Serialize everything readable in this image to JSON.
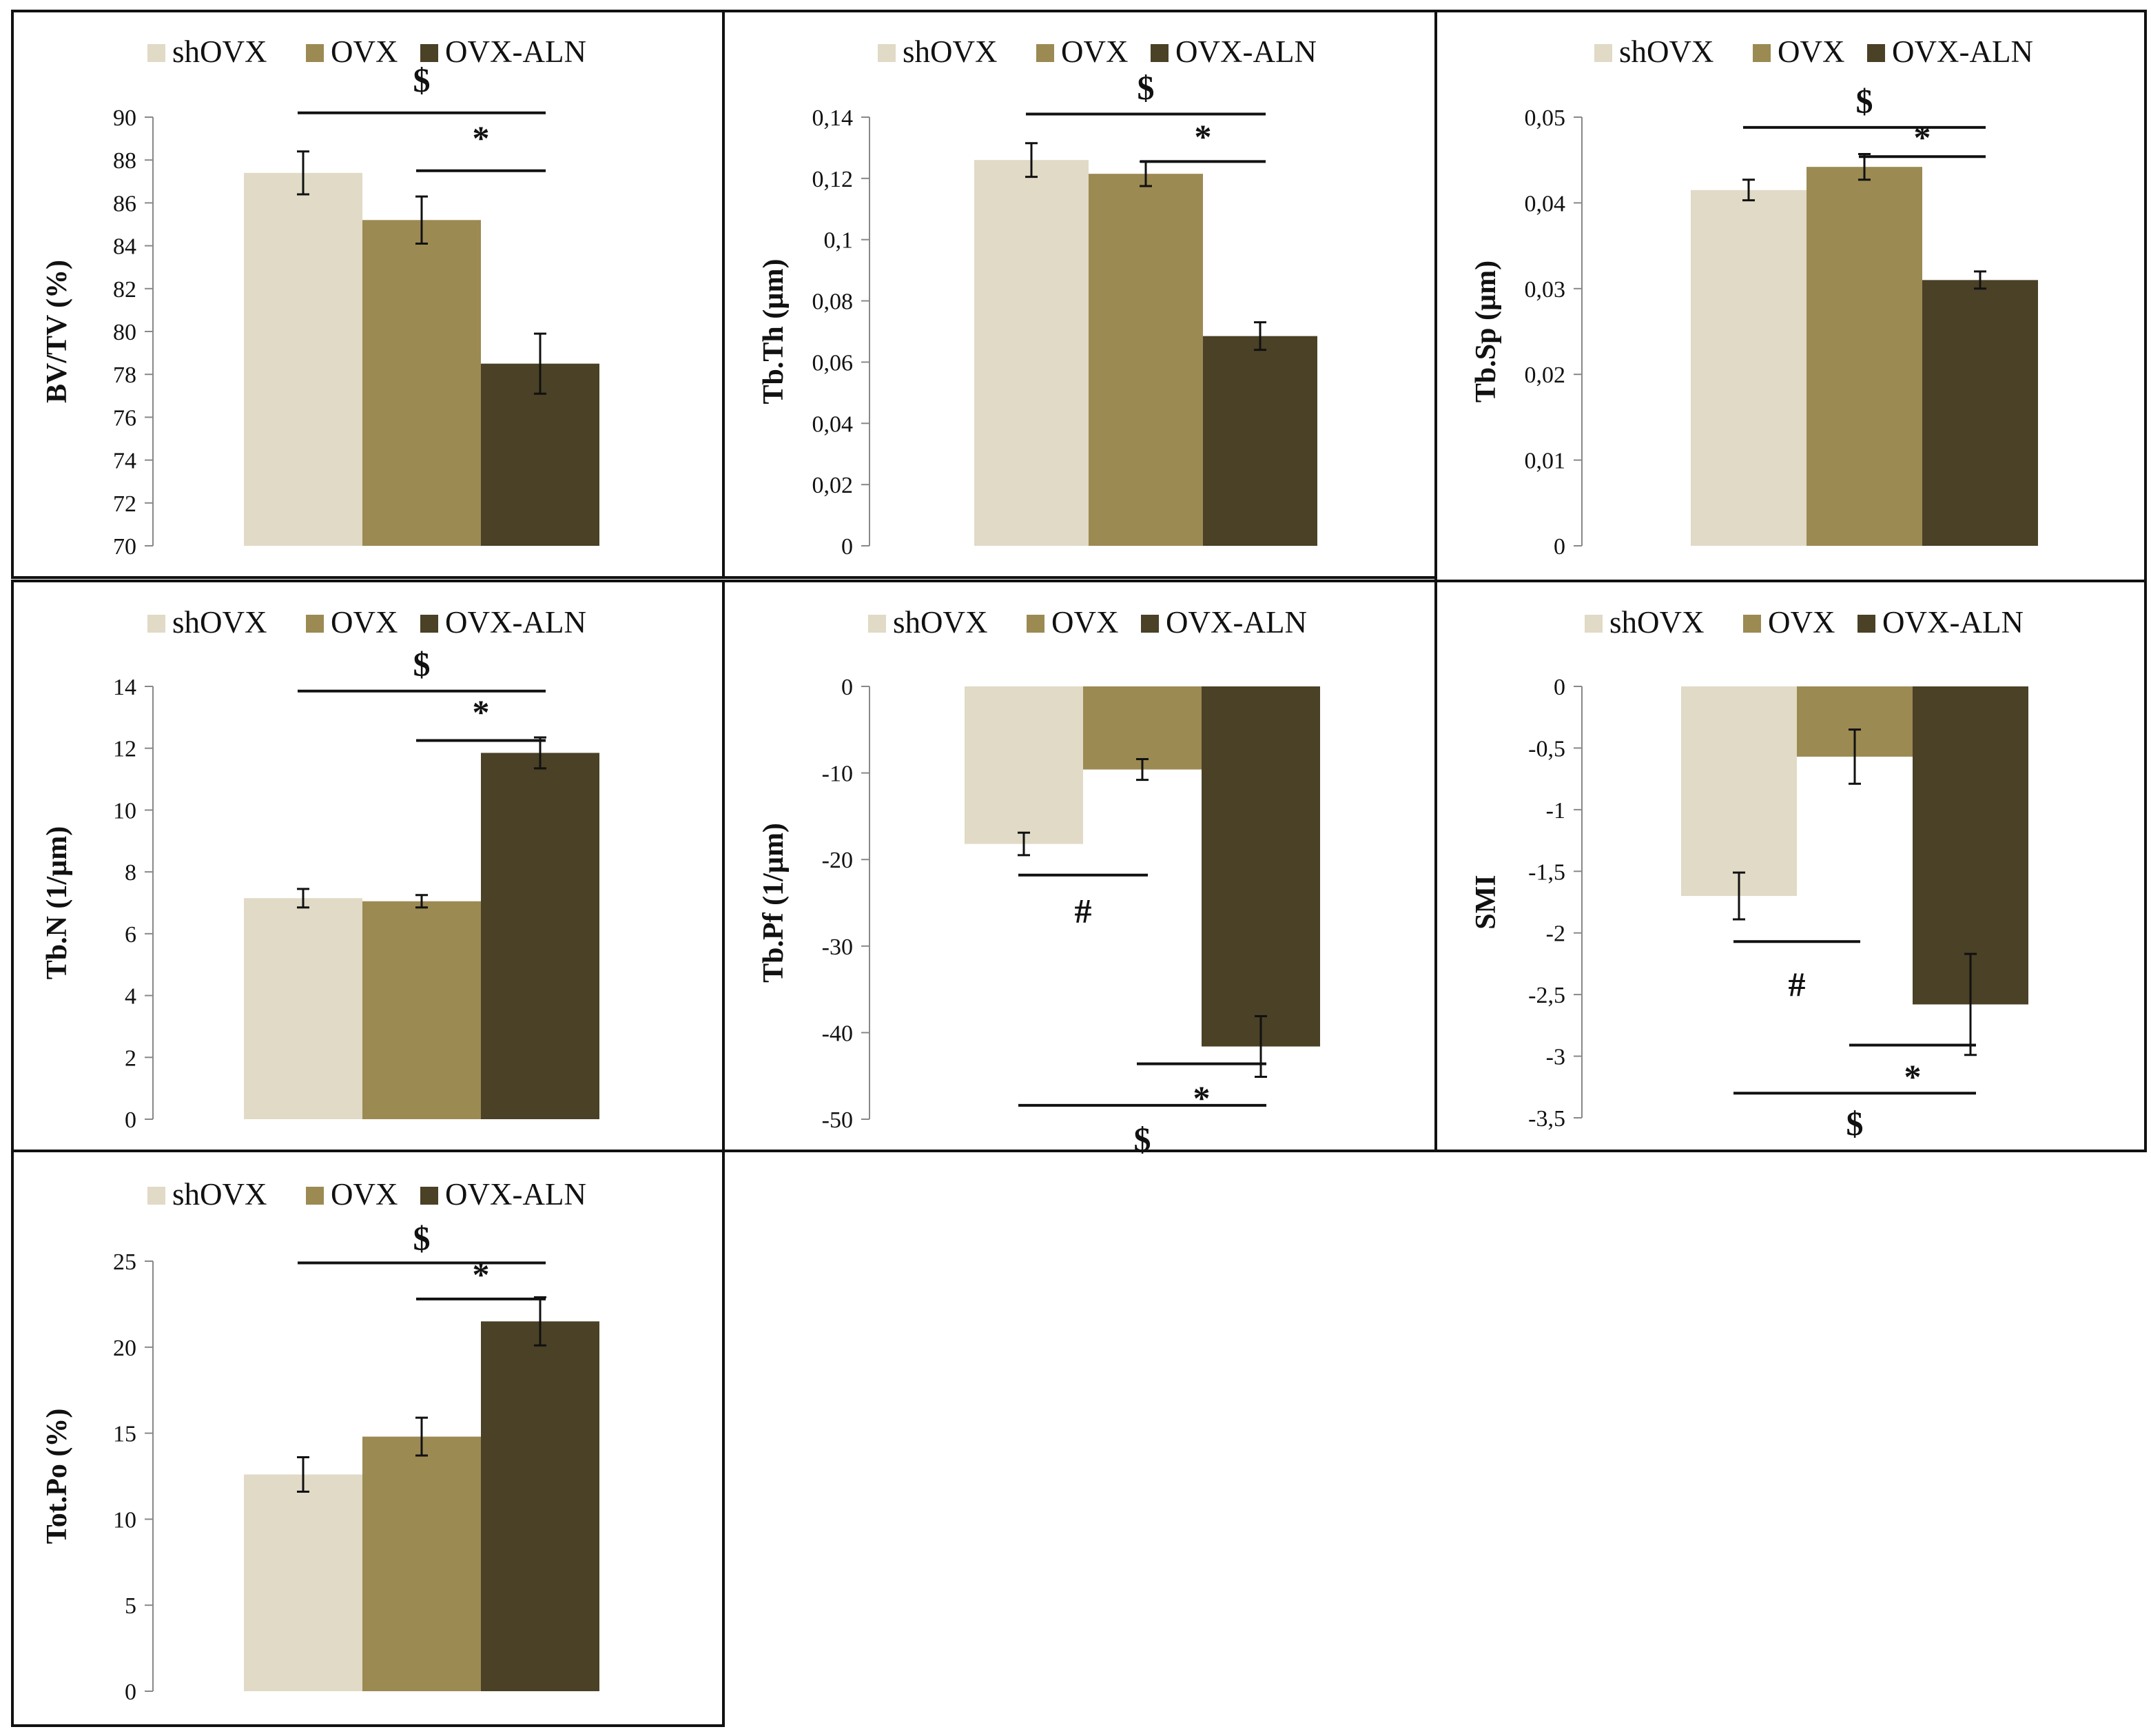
{
  "colors": {
    "shOVX": "#e0dac6",
    "OVX": "#9c8a53",
    "OVX-ALN": "#4a4126"
  },
  "chart_data": [
    {
      "type": "bar",
      "categories": [
        "shOVX",
        "OVX",
        "OVX-ALN"
      ],
      "values": [
        87.4,
        85.2,
        78.5
      ],
      "errors": [
        1.0,
        1.1,
        1.4
      ],
      "ylabel": "BV/TV (%)",
      "ylim": [
        70,
        90
      ],
      "yticks": [
        "70",
        "72",
        "74",
        "76",
        "78",
        "80",
        "82",
        "84",
        "86",
        "88",
        "90"
      ],
      "legend": [
        "shOVX",
        "OVX",
        "OVX-ALN"
      ],
      "annotations": [
        {
          "label": "$",
          "from": 0,
          "to": 2,
          "level": 90.2,
          "label_level": 91.7
        },
        {
          "label": "*",
          "from": 1,
          "to": 2,
          "level": 87.5,
          "label_level": 89.0
        }
      ]
    },
    {
      "type": "bar",
      "categories": [
        "shOVX",
        "OVX",
        "OVX-ALN"
      ],
      "values": [
        0.126,
        0.1215,
        0.0685
      ],
      "errors": [
        0.0055,
        0.004,
        0.0045
      ],
      "ylabel": "Tb.Th (µm)",
      "ylim": [
        0,
        0.14
      ],
      "yticks": [
        "0",
        "0,02",
        "0,04",
        "0,06",
        "0,08",
        "0,1",
        "0,12",
        "0,14"
      ],
      "legend": [
        "shOVX",
        "OVX",
        "OVX-ALN"
      ],
      "annotations": [
        {
          "label": "$",
          "from": 0,
          "to": 2,
          "level": 0.141,
          "label_level": 0.1495
        },
        {
          "label": "*",
          "from": 1,
          "to": 2,
          "level": 0.1255,
          "label_level": 0.1335
        }
      ]
    },
    {
      "type": "bar",
      "categories": [
        "shOVX",
        "OVX",
        "OVX-ALN"
      ],
      "values": [
        0.0415,
        0.0442,
        0.031
      ],
      "errors": [
        0.0012,
        0.0015,
        0.001
      ],
      "ylabel": "Tb.Sp (µm)",
      "ylim": [
        0,
        0.05
      ],
      "yticks": [
        "0",
        "0,01",
        "0,02",
        "0,03",
        "0,04",
        "0,05"
      ],
      "legend": [
        "shOVX",
        "OVX",
        "OVX-ALN"
      ],
      "annotations": [
        {
          "label": "$",
          "from": 0,
          "to": 2,
          "level": 0.0488,
          "label_level": 0.0518
        },
        {
          "label": "*",
          "from": 1,
          "to": 2,
          "level": 0.0454,
          "label_level": 0.0476
        }
      ]
    },
    {
      "type": "bar",
      "categories": [
        "shOVX",
        "OVX",
        "OVX-ALN"
      ],
      "values": [
        7.15,
        7.05,
        11.85
      ],
      "errors": [
        0.3,
        0.2,
        0.5
      ],
      "ylabel": "Tb.N (1/µm)",
      "ylim": [
        0,
        14
      ],
      "yticks": [
        "0",
        "2",
        "4",
        "6",
        "8",
        "10",
        "12",
        "14"
      ],
      "legend": [
        "shOVX",
        "OVX",
        "OVX-ALN"
      ],
      "annotations": [
        {
          "label": "$",
          "from": 0,
          "to": 2,
          "level": 13.85,
          "label_level": 14.7
        },
        {
          "label": "*",
          "from": 1,
          "to": 2,
          "level": 12.25,
          "label_level": 13.15
        }
      ]
    },
    {
      "type": "bar",
      "categories": [
        "shOVX",
        "OVX",
        "OVX-ALN"
      ],
      "values": [
        -18.2,
        -9.6,
        -41.6
      ],
      "errors": [
        1.3,
        1.2,
        3.5
      ],
      "ylabel": "Tb.Pf (1/µm)",
      "ylim": [
        -50,
        0
      ],
      "yticks": [
        "0",
        "-10",
        "-20",
        "-30",
        "-40",
        "-50"
      ],
      "legend": [
        "shOVX",
        "OVX",
        "OVX-ALN"
      ],
      "annotations": [
        {
          "label": "#",
          "from": 0,
          "to": 1,
          "level": -21.8,
          "label_level": -26.0
        },
        {
          "label": "*",
          "from": 1,
          "to": 2,
          "level": -43.6,
          "label_level": -47.6
        },
        {
          "label": "$",
          "from": 0,
          "to": 2,
          "level": -48.4,
          "label_level": -52.4
        }
      ]
    },
    {
      "type": "bar",
      "categories": [
        "shOVX",
        "OVX",
        "OVX-ALN"
      ],
      "values": [
        -1.7,
        -0.57,
        -2.58
      ],
      "errors": [
        0.19,
        0.22,
        0.41
      ],
      "ylabel": "SMI",
      "ylim": [
        -3.5,
        0
      ],
      "yticks": [
        "0",
        "-0,5",
        "-1",
        "-1,5",
        "-2",
        "-2,5",
        "-3",
        "-3,5"
      ],
      "legend": [
        "shOVX",
        "OVX",
        "OVX-ALN"
      ],
      "annotations": [
        {
          "label": "#",
          "from": 0,
          "to": 1,
          "level": -2.07,
          "label_level": -2.42
        },
        {
          "label": "*",
          "from": 1,
          "to": 2,
          "level": -2.91,
          "label_level": -3.17
        },
        {
          "label": "$",
          "from": 0,
          "to": 2,
          "level": -3.3,
          "label_level": -3.55
        }
      ]
    },
    {
      "type": "bar",
      "categories": [
        "shOVX",
        "OVX",
        "OVX-ALN"
      ],
      "values": [
        12.6,
        14.8,
        21.5
      ],
      "errors": [
        1.0,
        1.1,
        1.4
      ],
      "ylabel": "Tot.Po (%)",
      "ylim": [
        0,
        25
      ],
      "yticks": [
        "0",
        "5",
        "10",
        "15",
        "20",
        "25"
      ],
      "legend": [
        "shOVX",
        "OVX",
        "OVX-ALN"
      ],
      "annotations": [
        {
          "label": "$",
          "from": 0,
          "to": 2,
          "level": 24.9,
          "label_level": 26.3
        },
        {
          "label": "*",
          "from": 1,
          "to": 2,
          "level": 22.8,
          "label_level": 24.2
        }
      ]
    }
  ]
}
